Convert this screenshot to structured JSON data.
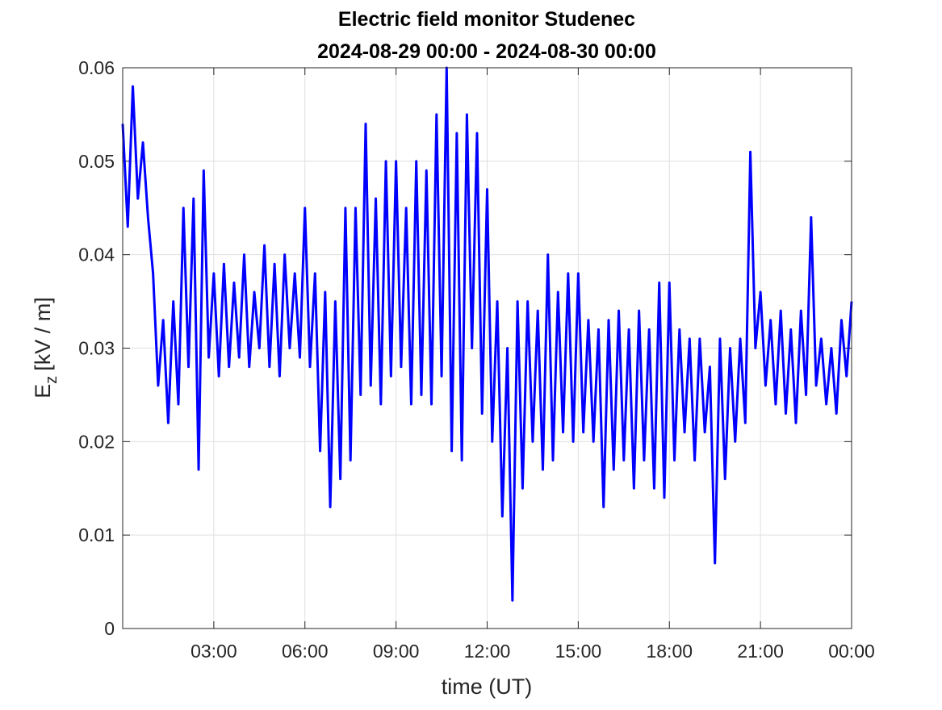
{
  "chart_data": {
    "type": "line",
    "title": [
      "Electric field monitor Studenec",
      "2024-08-29 00:00 - 2024-08-30 00:00"
    ],
    "xlabel": "time (UT)",
    "ylabel": {
      "base": "E",
      "subscript": "z",
      "unit": "[kV / m]"
    },
    "xlim": [
      0,
      1440
    ],
    "xticks": [
      {
        "value": 180,
        "label": "03:00"
      },
      {
        "value": 360,
        "label": "06:00"
      },
      {
        "value": 540,
        "label": "09:00"
      },
      {
        "value": 720,
        "label": "12:00"
      },
      {
        "value": 900,
        "label": "15:00"
      },
      {
        "value": 1080,
        "label": "18:00"
      },
      {
        "value": 1260,
        "label": "21:00"
      },
      {
        "value": 1440,
        "label": "00:00"
      }
    ],
    "ylim": [
      0,
      0.06
    ],
    "yticks": [
      0,
      0.01,
      0.02,
      0.03,
      0.04,
      0.05,
      0.06
    ],
    "grid": true,
    "x": [
      0,
      10,
      20,
      30,
      40,
      50,
      60,
      70,
      80,
      90,
      100,
      110,
      120,
      130,
      140,
      150,
      160,
      170,
      180,
      190,
      200,
      210,
      220,
      230,
      240,
      250,
      260,
      270,
      280,
      290,
      300,
      310,
      320,
      330,
      340,
      350,
      360,
      370,
      380,
      390,
      400,
      410,
      420,
      430,
      440,
      450,
      460,
      470,
      480,
      490,
      500,
      510,
      520,
      530,
      540,
      550,
      560,
      570,
      580,
      590,
      600,
      610,
      620,
      630,
      640,
      650,
      660,
      670,
      680,
      690,
      700,
      710,
      720,
      730,
      740,
      750,
      760,
      770,
      780,
      790,
      800,
      810,
      820,
      830,
      840,
      850,
      860,
      870,
      880,
      890,
      900,
      910,
      920,
      930,
      940,
      950,
      960,
      970,
      980,
      990,
      1000,
      1010,
      1020,
      1030,
      1040,
      1050,
      1060,
      1070,
      1080,
      1090,
      1100,
      1110,
      1120,
      1130,
      1140,
      1150,
      1160,
      1170,
      1180,
      1190,
      1200,
      1210,
      1220,
      1230,
      1240,
      1250,
      1260,
      1270,
      1280,
      1290,
      1300,
      1310,
      1320,
      1330,
      1340,
      1350,
      1360,
      1370,
      1380,
      1390,
      1400,
      1410,
      1420,
      1430,
      1440
    ],
    "series": [
      {
        "color": "#0000ff",
        "values": [
          0.054,
          0.043,
          0.058,
          0.046,
          0.052,
          0.044,
          0.038,
          0.026,
          0.033,
          0.022,
          0.035,
          0.024,
          0.045,
          0.028,
          0.046,
          0.017,
          0.049,
          0.029,
          0.038,
          0.027,
          0.039,
          0.028,
          0.037,
          0.029,
          0.04,
          0.028,
          0.036,
          0.03,
          0.041,
          0.028,
          0.039,
          0.027,
          0.04,
          0.03,
          0.038,
          0.029,
          0.045,
          0.028,
          0.038,
          0.019,
          0.036,
          0.013,
          0.035,
          0.016,
          0.045,
          0.018,
          0.045,
          0.025,
          0.054,
          0.026,
          0.046,
          0.024,
          0.05,
          0.027,
          0.05,
          0.028,
          0.045,
          0.024,
          0.05,
          0.025,
          0.049,
          0.024,
          0.055,
          0.027,
          0.06,
          0.019,
          0.053,
          0.018,
          0.055,
          0.03,
          0.053,
          0.023,
          0.047,
          0.02,
          0.035,
          0.012,
          0.03,
          0.003,
          0.035,
          0.015,
          0.035,
          0.02,
          0.034,
          0.017,
          0.04,
          0.018,
          0.036,
          0.021,
          0.038,
          0.02,
          0.038,
          0.021,
          0.033,
          0.02,
          0.032,
          0.013,
          0.033,
          0.017,
          0.034,
          0.018,
          0.032,
          0.015,
          0.034,
          0.018,
          0.032,
          0.015,
          0.037,
          0.014,
          0.037,
          0.018,
          0.032,
          0.021,
          0.031,
          0.018,
          0.031,
          0.021,
          0.028,
          0.007,
          0.031,
          0.016,
          0.03,
          0.02,
          0.031,
          0.022,
          0.051,
          0.03,
          0.036,
          0.026,
          0.033,
          0.024,
          0.034,
          0.023,
          0.032,
          0.022,
          0.034,
          0.025,
          0.044,
          0.026,
          0.031,
          0.024,
          0.03,
          0.023,
          0.033,
          0.027,
          0.035
        ]
      }
    ]
  }
}
